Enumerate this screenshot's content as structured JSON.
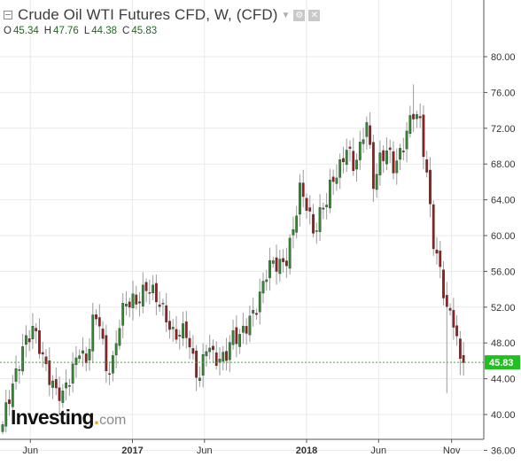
{
  "header": {
    "title": "Crude Oil WTI Futures CFD, W, (CFD)",
    "caret_icon": "caret-down-icon",
    "settings_icon": "gear-icon",
    "close_icon": "close-icon",
    "ohlc": [
      {
        "key": "O",
        "value": "45.34"
      },
      {
        "key": "H",
        "value": "47.76"
      },
      {
        "key": "L",
        "value": "44.38"
      },
      {
        "key": "C",
        "value": "45.83"
      }
    ]
  },
  "logo": {
    "main": "Investing",
    "dot": ".",
    "suffix": "com"
  },
  "colors": {
    "up": "#2e8b2e",
    "down": "#9b1c1c",
    "wick": "#9a9a9a",
    "grid": "#e9e9e9",
    "last_price": "#21c021",
    "last_price_text": "#ffffff"
  },
  "chart_data": {
    "type": "candlestick",
    "timeframe": "W",
    "ylim": [
      34.0,
      81.5
    ],
    "y_ticks": [
      36,
      40,
      44,
      48,
      52,
      56,
      60,
      64,
      68,
      72,
      76,
      80
    ],
    "y_tick_labels": [
      "36.00",
      "40.00",
      "44.00",
      "48.00",
      "52.00",
      "56.00",
      "60.00",
      "64.00",
      "68.00",
      "72.00",
      "76.00",
      "80.00"
    ],
    "x_range": [
      "2016-04-04",
      "2018-12-31"
    ],
    "x_ticks": [
      {
        "label": "Jun",
        "date": "2016-06-01"
      },
      {
        "label": "2017",
        "date": "2017-01-01"
      },
      {
        "label": "Jun",
        "date": "2017-06-01"
      },
      {
        "label": "2018",
        "date": "2018-01-01"
      },
      {
        "label": "Jun",
        "date": "2018-06-01"
      },
      {
        "label": "Nov",
        "date": "2018-11-01"
      }
    ],
    "last_price": 45.83,
    "last_price_label": "45.83",
    "grid": true,
    "start_date": "2016-04-04",
    "anchors": [
      [
        0,
        38.3
      ],
      [
        3,
        43.5
      ],
      [
        6,
        47.8
      ],
      [
        9,
        49.0
      ],
      [
        11,
        47.5
      ],
      [
        14,
        44.8
      ],
      [
        16,
        42.5
      ],
      [
        18,
        41.5
      ],
      [
        20,
        44.0
      ],
      [
        23,
        48.0
      ],
      [
        25,
        45.5
      ],
      [
        27,
        49.8
      ],
      [
        29,
        50.6
      ],
      [
        31,
        45.5
      ],
      [
        33,
        46.0
      ],
      [
        35,
        49.8
      ],
      [
        37,
        52.2
      ],
      [
        39,
        53.0
      ],
      [
        41,
        53.5
      ],
      [
        43,
        54.0
      ],
      [
        45,
        53.0
      ],
      [
        47,
        52.5
      ],
      [
        49,
        51.5
      ],
      [
        51,
        49.0
      ],
      [
        53,
        48.5
      ],
      [
        55,
        49.0
      ],
      [
        57,
        46.5
      ],
      [
        59,
        44.5
      ],
      [
        61,
        47.5
      ],
      [
        63,
        46.0
      ],
      [
        65,
        46.2
      ],
      [
        67,
        47.5
      ],
      [
        69,
        48.8
      ],
      [
        71,
        48.0
      ],
      [
        73,
        49.8
      ],
      [
        75,
        51.8
      ],
      [
        77,
        53.5
      ],
      [
        79,
        55.5
      ],
      [
        81,
        56.5
      ],
      [
        83,
        57.0
      ],
      [
        85,
        58.0
      ],
      [
        87,
        60.5
      ],
      [
        89,
        64.5
      ],
      [
        91,
        63.5
      ],
      [
        93,
        61.0
      ],
      [
        95,
        62.5
      ],
      [
        97,
        63.5
      ],
      [
        99,
        66.0
      ],
      [
        101,
        68.0
      ],
      [
        103,
        70.5
      ],
      [
        105,
        67.5
      ],
      [
        107,
        69.0
      ],
      [
        109,
        73.0
      ],
      [
        111,
        66.5
      ],
      [
        113,
        68.5
      ],
      [
        115,
        69.0
      ],
      [
        117,
        67.5
      ],
      [
        119,
        69.5
      ],
      [
        121,
        72.0
      ],
      [
        123,
        73.5
      ],
      [
        125,
        72.0
      ],
      [
        127,
        67.0
      ],
      [
        129,
        60.0
      ],
      [
        131,
        56.0
      ],
      [
        133,
        51.0
      ],
      [
        135,
        50.5
      ],
      [
        137,
        46.5
      ],
      [
        138,
        45.8
      ]
    ],
    "highs_of_note": [
      [
        123,
        76.9
      ]
    ],
    "lows_of_note": [
      [
        0,
        37.8
      ],
      [
        133,
        42.4
      ],
      [
        137,
        44.4
      ]
    ]
  }
}
